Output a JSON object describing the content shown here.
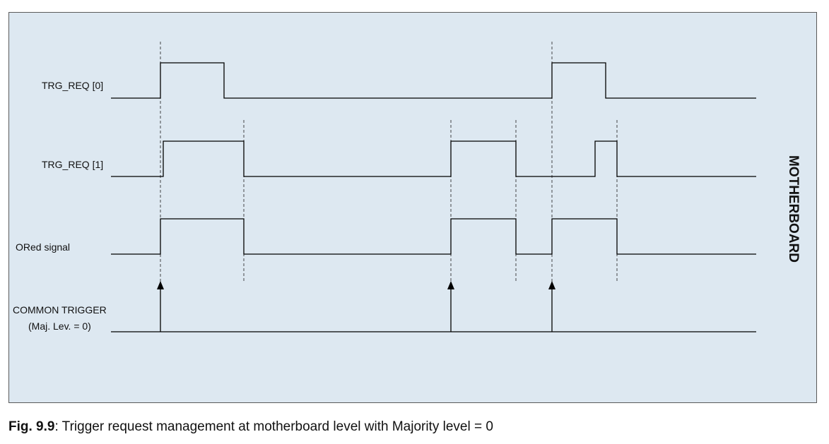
{
  "figure": {
    "side_label": "MOTHERBOARD",
    "caption_number": "Fig. 9.9",
    "caption_text": ": Trigger request management at motherboard level with Majority level = 0"
  },
  "signals": [
    {
      "id": "trg_req_0",
      "label_lines": [
        "TRG_REQ [0]"
      ],
      "kind": "waveform",
      "high_intervals": [
        [
          227,
          317
        ],
        [
          781,
          857
        ]
      ]
    },
    {
      "id": "trg_req_1",
      "label_lines": [
        "TRG_REQ [1]"
      ],
      "kind": "waveform",
      "high_intervals": [
        [
          231,
          345
        ],
        [
          638,
          730
        ],
        [
          842,
          873
        ]
      ]
    },
    {
      "id": "ored_signal",
      "label_lines": [
        "ORed signal"
      ],
      "kind": "waveform",
      "high_intervals": [
        [
          227,
          345
        ],
        [
          638,
          730
        ],
        [
          781,
          873
        ]
      ]
    },
    {
      "id": "common_trigger",
      "label_lines": [
        "COMMON TRIGGER",
        "(Maj. Lev. = 0)"
      ],
      "kind": "pulses",
      "pulse_times": [
        227,
        638,
        781
      ]
    }
  ],
  "time_axis": {
    "start": 157,
    "end": 1070
  },
  "markers": [
    {
      "time": 227,
      "from_signal": 0
    },
    {
      "time": 345,
      "from_signal": 1
    },
    {
      "time": 638,
      "from_signal": 1
    },
    {
      "time": 730,
      "from_signal": 1
    },
    {
      "time": 781,
      "from_signal": 0
    },
    {
      "time": 873,
      "from_signal": 1
    }
  ],
  "colors": {
    "background": "#dde8f1",
    "trace": "#000000",
    "marker": "#333333",
    "frame": "#5a5a5a"
  }
}
